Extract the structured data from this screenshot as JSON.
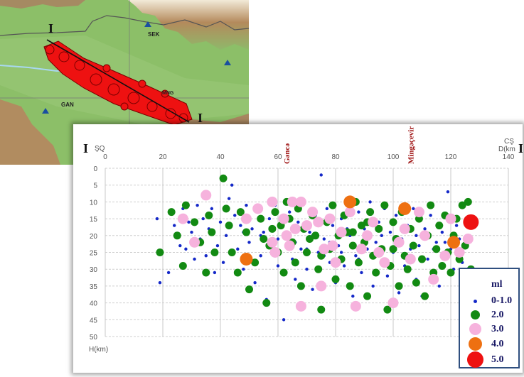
{
  "map": {
    "labels": {
      "sek": "SEK",
      "gan": "GAN",
      "ming": "MNG"
    },
    "profile_start": "I",
    "profile_end": "I",
    "colors": {
      "relief_low": "#8cbf68",
      "relief_high": "#a08058",
      "epicenter": "#ee1111",
      "water": "#a8d8f0",
      "stations": "#1a4fa0"
    }
  },
  "chart_data": {
    "type": "scatter",
    "title": "",
    "profile_label_left": "I",
    "profile_label_right": "I",
    "direction_left": "ŞQ",
    "direction_right": "CŞ",
    "xlabel": "D(km",
    "ylabel": "H(km)",
    "xlim": [
      0,
      140
    ],
    "ylim": [
      50,
      0
    ],
    "x_ticks": [
      0,
      20,
      40,
      60,
      80,
      100,
      120,
      140
    ],
    "y_ticks": [
      0,
      5,
      10,
      15,
      20,
      25,
      30,
      35,
      40,
      45,
      50
    ],
    "grid": true,
    "annotations": [
      {
        "text": "Gəncə",
        "x": 64,
        "color": "#a01818"
      },
      {
        "text": "Mingəçevir",
        "x": 107,
        "color": "#a01818"
      }
    ],
    "legend": {
      "title": "ml",
      "position": "bottom-right",
      "entries": [
        {
          "label": "0-1.0",
          "color": "#1428c8"
        },
        {
          "label": "2.0",
          "color": "#128a12"
        },
        {
          "label": "3.0",
          "color": "#f6b2dd"
        },
        {
          "label": "4.0",
          "color": "#ee7011"
        },
        {
          "label": "5.0",
          "color": "#ee1111"
        }
      ]
    },
    "series": [
      {
        "name": "0-1.0",
        "color": "#1428c8",
        "points": [
          [
            18,
            15
          ],
          [
            19,
            34
          ],
          [
            22,
            31
          ],
          [
            24,
            17
          ],
          [
            26,
            23
          ],
          [
            27,
            12
          ],
          [
            28,
            24
          ],
          [
            29,
            16
          ],
          [
            30,
            19
          ],
          [
            31,
            27
          ],
          [
            32,
            11
          ],
          [
            33,
            21
          ],
          [
            34,
            15
          ],
          [
            35,
            26
          ],
          [
            36,
            18
          ],
          [
            37,
            12
          ],
          [
            38,
            31
          ],
          [
            39,
            23
          ],
          [
            40,
            16
          ],
          [
            41,
            28
          ],
          [
            42,
            20
          ],
          [
            43,
            9
          ],
          [
            44,
            5
          ],
          [
            45,
            14
          ],
          [
            46,
            24
          ],
          [
            47,
            17
          ],
          [
            48,
            30
          ],
          [
            49,
            11
          ],
          [
            50,
            22
          ],
          [
            51,
            18
          ],
          [
            52,
            34
          ],
          [
            53,
            13
          ],
          [
            54,
            26
          ],
          [
            55,
            19
          ],
          [
            56,
            39
          ],
          [
            57,
            15
          ],
          [
            58,
            23
          ],
          [
            59,
            11
          ],
          [
            60,
            29
          ],
          [
            61,
            17
          ],
          [
            62,
            45
          ],
          [
            63,
            21
          ],
          [
            64,
            13
          ],
          [
            65,
            27
          ],
          [
            66,
            33
          ],
          [
            67,
            16
          ],
          [
            68,
            24
          ],
          [
            69,
            10
          ],
          [
            70,
            30
          ],
          [
            71,
            19
          ],
          [
            72,
            36
          ],
          [
            73,
            14
          ],
          [
            74,
            25
          ],
          [
            75,
            2
          ],
          [
            76,
            21
          ],
          [
            77,
            12
          ],
          [
            78,
            28
          ],
          [
            79,
            17
          ],
          [
            80,
            34
          ],
          [
            81,
            23
          ],
          [
            82,
            15
          ],
          [
            83,
            29
          ],
          [
            84,
            11
          ],
          [
            85,
            20
          ],
          [
            86,
            38
          ],
          [
            87,
            26
          ],
          [
            88,
            13
          ],
          [
            89,
            31
          ],
          [
            90,
            18
          ],
          [
            91,
            24
          ],
          [
            92,
            10
          ],
          [
            93,
            35
          ],
          [
            94,
            22
          ],
          [
            95,
            16
          ],
          [
            96,
            28
          ],
          [
            97,
            12
          ],
          [
            98,
            32
          ],
          [
            99,
            19
          ],
          [
            100,
            25
          ],
          [
            101,
            14
          ],
          [
            102,
            37
          ],
          [
            103,
            21
          ],
          [
            104,
            29
          ],
          [
            105,
            17
          ],
          [
            106,
            26
          ],
          [
            107,
            12
          ],
          [
            108,
            33
          ],
          [
            109,
            23
          ],
          [
            110,
            38
          ],
          [
            111,
            18
          ],
          [
            112,
            27
          ],
          [
            113,
            14
          ],
          [
            114,
            31
          ],
          [
            115,
            22
          ],
          [
            116,
            35
          ],
          [
            117,
            19
          ],
          [
            118,
            26
          ],
          [
            119,
            7
          ],
          [
            120,
            24
          ],
          [
            121,
            30
          ],
          [
            122,
            17
          ],
          [
            123,
            21
          ],
          [
            124,
            28
          ],
          [
            125,
            23
          ],
          [
            60,
            21
          ],
          [
            72,
            20
          ],
          [
            84,
            18
          ],
          [
            96,
            20
          ],
          [
            108,
            20
          ],
          [
            66,
            22
          ],
          [
            78,
            22
          ],
          [
            90,
            21
          ],
          [
            102,
            22
          ],
          [
            114,
            24
          ],
          [
            54,
            20
          ],
          [
            48,
            19
          ],
          [
            70,
            24
          ],
          [
            82,
            25
          ],
          [
            94,
            25
          ],
          [
            106,
            24
          ],
          [
            118,
            22
          ],
          [
            58,
            24
          ],
          [
            76,
            26
          ],
          [
            88,
            27
          ]
        ]
      },
      {
        "name": "2.0",
        "color": "#128a12",
        "points": [
          [
            19,
            25
          ],
          [
            23,
            13
          ],
          [
            25,
            20
          ],
          [
            27,
            29
          ],
          [
            28,
            11
          ],
          [
            31,
            16
          ],
          [
            33,
            22
          ],
          [
            35,
            31
          ],
          [
            36,
            14
          ],
          [
            37,
            19
          ],
          [
            38,
            25
          ],
          [
            41,
            3
          ],
          [
            42,
            12
          ],
          [
            43,
            17
          ],
          [
            44,
            25
          ],
          [
            46,
            31
          ],
          [
            47,
            13
          ],
          [
            49,
            19
          ],
          [
            50,
            36
          ],
          [
            52,
            28
          ],
          [
            54,
            15
          ],
          [
            55,
            21
          ],
          [
            56,
            40
          ],
          [
            58,
            18
          ],
          [
            59,
            13
          ],
          [
            60,
            25
          ],
          [
            62,
            31
          ],
          [
            63,
            10
          ],
          [
            64,
            15
          ],
          [
            65,
            22
          ],
          [
            66,
            28
          ],
          [
            67,
            12
          ],
          [
            68,
            35
          ],
          [
            69,
            18
          ],
          [
            70,
            25
          ],
          [
            72,
            14
          ],
          [
            73,
            20
          ],
          [
            74,
            30
          ],
          [
            75,
            42
          ],
          [
            77,
            16
          ],
          [
            78,
            24
          ],
          [
            79,
            11
          ],
          [
            80,
            33
          ],
          [
            81,
            20
          ],
          [
            82,
            27
          ],
          [
            83,
            14
          ],
          [
            84,
            19
          ],
          [
            85,
            35
          ],
          [
            86,
            23
          ],
          [
            87,
            10
          ],
          [
            88,
            28
          ],
          [
            89,
            17
          ],
          [
            90,
            22
          ],
          [
            91,
            38
          ],
          [
            92,
            13
          ],
          [
            93,
            26
          ],
          [
            94,
            31
          ],
          [
            95,
            18
          ],
          [
            96,
            24
          ],
          [
            97,
            11
          ],
          [
            98,
            42
          ],
          [
            99,
            29
          ],
          [
            100,
            16
          ],
          [
            101,
            21
          ],
          [
            102,
            35
          ],
          [
            103,
            13
          ],
          [
            104,
            26
          ],
          [
            105,
            30
          ],
          [
            106,
            18
          ],
          [
            107,
            23
          ],
          [
            108,
            34
          ],
          [
            109,
            15
          ],
          [
            110,
            27
          ],
          [
            111,
            38
          ],
          [
            112,
            20
          ],
          [
            113,
            11
          ],
          [
            114,
            31
          ],
          [
            115,
            24
          ],
          [
            116,
            17
          ],
          [
            117,
            29
          ],
          [
            118,
            14
          ],
          [
            119,
            25
          ],
          [
            120,
            31
          ],
          [
            121,
            20
          ],
          [
            122,
            15
          ],
          [
            123,
            27
          ],
          [
            124,
            11
          ],
          [
            125,
            23
          ],
          [
            126,
            10
          ],
          [
            127,
            30
          ],
          [
            57,
            23
          ],
          [
            71,
            21
          ],
          [
            86,
            19
          ],
          [
            100,
            24
          ],
          [
            61,
            17
          ],
          [
            75,
            26
          ],
          [
            91,
            16
          ]
        ]
      },
      {
        "name": "3.0",
        "color": "#f6b2dd",
        "points": [
          [
            27,
            15
          ],
          [
            35,
            8
          ],
          [
            31,
            22
          ],
          [
            49,
            15
          ],
          [
            53,
            12
          ],
          [
            58,
            10
          ],
          [
            59,
            25
          ],
          [
            62,
            15
          ],
          [
            63,
            20
          ],
          [
            65,
            10
          ],
          [
            66,
            18
          ],
          [
            68,
            10
          ],
          [
            70,
            17
          ],
          [
            72,
            13
          ],
          [
            75,
            35
          ],
          [
            76,
            24
          ],
          [
            78,
            15
          ],
          [
            80,
            28
          ],
          [
            82,
            19
          ],
          [
            85,
            13
          ],
          [
            87,
            41
          ],
          [
            89,
            24
          ],
          [
            91,
            20
          ],
          [
            93,
            16
          ],
          [
            95,
            25
          ],
          [
            97,
            28
          ],
          [
            100,
            40
          ],
          [
            102,
            22
          ],
          [
            104,
            18
          ],
          [
            106,
            27
          ],
          [
            109,
            13
          ],
          [
            111,
            20
          ],
          [
            114,
            33
          ],
          [
            118,
            26
          ],
          [
            120,
            15
          ],
          [
            123,
            25
          ],
          [
            126,
            21
          ],
          [
            68,
            41
          ],
          [
            58,
            22
          ],
          [
            64,
            23
          ],
          [
            79,
            23
          ],
          [
            74,
            16
          ]
        ]
      },
      {
        "name": "4.0",
        "color": "#ee7011",
        "points": [
          [
            49,
            27
          ],
          [
            85,
            10
          ],
          [
            104,
            12
          ],
          [
            121,
            22
          ]
        ]
      },
      {
        "name": "5.0",
        "color": "#ee1111",
        "points": [
          [
            127,
            16
          ]
        ]
      }
    ]
  }
}
